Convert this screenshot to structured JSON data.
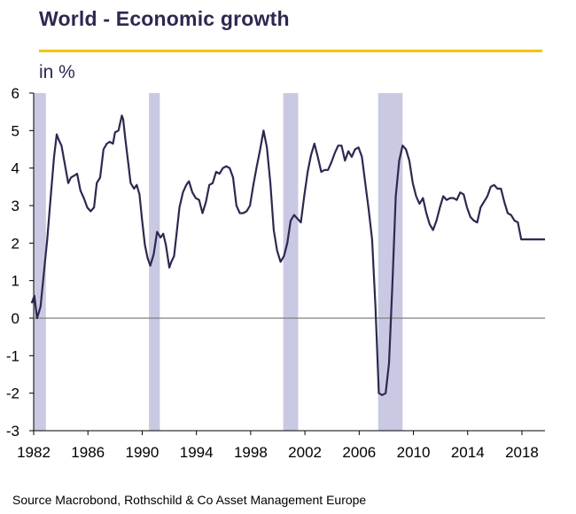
{
  "header": {
    "title": "World - Economic growth",
    "unit": "in %"
  },
  "footer": {
    "source": "Source Macrobond,  Rothschild & Co Asset Management  Europe"
  },
  "colors": {
    "title": "#2e2850",
    "title_rule": "#f5c400",
    "line": "#2e2850",
    "recession_band": "#c9c9e3",
    "zero_line": "#808080"
  },
  "chart_data": {
    "type": "line",
    "title": "World - Economic growth",
    "ylabel": "in %",
    "xlabel": "",
    "xlim": [
      1982,
      2019.7
    ],
    "ylim": [
      -3,
      6
    ],
    "x_ticks": [
      "1982",
      "1986",
      "1990",
      "1994",
      "1998",
      "2002",
      "2006",
      "2010",
      "2014",
      "2018"
    ],
    "y_ticks": [
      "6",
      "5",
      "4",
      "3",
      "2",
      "1",
      "0",
      "-1",
      "-2",
      "-3"
    ],
    "grid": false,
    "legend": "none",
    "recession_periods": [
      [
        1982.0,
        1982.9
      ],
      [
        1990.5,
        1991.3
      ],
      [
        2000.4,
        2001.5
      ],
      [
        2007.4,
        2009.2
      ]
    ],
    "series": [
      {
        "name": "",
        "x": [
          1981.85,
          1982.05,
          1982.25,
          1982.5,
          1982.75,
          1983.0,
          1983.25,
          1983.5,
          1983.7,
          1983.85,
          1984.05,
          1984.3,
          1984.55,
          1984.75,
          1985.0,
          1985.2,
          1985.45,
          1985.7,
          1985.95,
          1986.2,
          1986.45,
          1986.65,
          1986.9,
          1987.15,
          1987.4,
          1987.6,
          1987.85,
          1988.0,
          1988.25,
          1988.5,
          1988.6,
          1988.75,
          1988.95,
          1989.15,
          1989.4,
          1989.6,
          1989.8,
          1990.0,
          1990.2,
          1990.4,
          1990.6,
          1990.85,
          1991.1,
          1991.35,
          1991.55,
          1991.75,
          1992.0,
          1992.15,
          1992.35,
          1992.55,
          1992.75,
          1993.0,
          1993.25,
          1993.45,
          1993.7,
          1993.95,
          1994.2,
          1994.45,
          1994.7,
          1994.95,
          1995.2,
          1995.45,
          1995.7,
          1995.95,
          1996.2,
          1996.45,
          1996.7,
          1996.95,
          1997.2,
          1997.45,
          1997.7,
          1997.95,
          1998.2,
          1998.45,
          1998.7,
          1998.95,
          1999.2,
          1999.45,
          1999.7,
          1999.95,
          2000.2,
          2000.45,
          2000.7,
          2000.95,
          2001.2,
          2001.45,
          2001.7,
          2001.95,
          2002.2,
          2002.45,
          2002.7,
          2002.95,
          2003.2,
          2003.45,
          2003.7,
          2003.95,
          2004.2,
          2004.45,
          2004.7,
          2004.95,
          2005.2,
          2005.45,
          2005.7,
          2005.95,
          2006.2,
          2006.45,
          2006.7,
          2006.95,
          2007.2,
          2007.45,
          2007.7,
          2007.95,
          2008.2,
          2008.45,
          2008.7,
          2008.95,
          2009.2,
          2009.45,
          2009.7,
          2009.95,
          2010.2,
          2010.45,
          2010.7,
          2010.95,
          2011.2,
          2011.45,
          2011.7,
          2011.95,
          2012.2,
          2012.45,
          2012.7,
          2012.95,
          2013.2,
          2013.45,
          2013.7,
          2013.95,
          2014.2,
          2014.45,
          2014.7,
          2014.95,
          2015.2,
          2015.45,
          2015.7,
          2015.95,
          2016.2,
          2016.45,
          2016.7,
          2016.95,
          2017.2,
          2017.45,
          2017.7,
          2017.95,
          2018.2,
          2018.45,
          2018.7,
          2018.95,
          2019.2,
          2019.45,
          2019.7
        ],
        "y": [
          0.4,
          0.6,
          0.0,
          0.3,
          1.2,
          2.1,
          3.2,
          4.3,
          4.9,
          4.75,
          4.6,
          4.1,
          3.6,
          3.75,
          3.8,
          3.85,
          3.4,
          3.2,
          2.95,
          2.85,
          2.95,
          3.6,
          3.75,
          4.5,
          4.65,
          4.7,
          4.65,
          4.95,
          5.0,
          5.4,
          5.3,
          4.8,
          4.2,
          3.6,
          3.45,
          3.55,
          3.3,
          2.6,
          1.95,
          1.6,
          1.4,
          1.7,
          2.3,
          2.15,
          2.25,
          1.95,
          1.35,
          1.5,
          1.65,
          2.3,
          2.95,
          3.35,
          3.55,
          3.65,
          3.35,
          3.2,
          3.15,
          2.8,
          3.1,
          3.55,
          3.6,
          3.9,
          3.85,
          4.0,
          4.05,
          4.0,
          3.75,
          3.0,
          2.8,
          2.8,
          2.85,
          3.0,
          3.55,
          4.05,
          4.5,
          5.0,
          4.55,
          3.6,
          2.35,
          1.8,
          1.5,
          1.65,
          2.0,
          2.6,
          2.75,
          2.65,
          2.55,
          3.25,
          3.9,
          4.35,
          4.65,
          4.3,
          3.9,
          3.95,
          3.95,
          4.15,
          4.4,
          4.6,
          4.6,
          4.2,
          4.45,
          4.3,
          4.5,
          4.55,
          4.3,
          3.6,
          2.9,
          2.1,
          0.3,
          -2.0,
          -2.05,
          -2.0,
          -1.2,
          0.9,
          3.25,
          4.2,
          4.6,
          4.5,
          4.2,
          3.6,
          3.25,
          3.05,
          3.2,
          2.8,
          2.5,
          2.35,
          2.6,
          2.95,
          3.25,
          3.15,
          3.2,
          3.2,
          3.15,
          3.35,
          3.3,
          2.95,
          2.7,
          2.6,
          2.55,
          2.95,
          3.1,
          3.25,
          3.5,
          3.55,
          3.45,
          3.45,
          3.1,
          2.8,
          2.75,
          2.6,
          2.55,
          2.1,
          2.1,
          2.1,
          2.1,
          2.1,
          2.1,
          2.1,
          2.1
        ]
      }
    ]
  }
}
